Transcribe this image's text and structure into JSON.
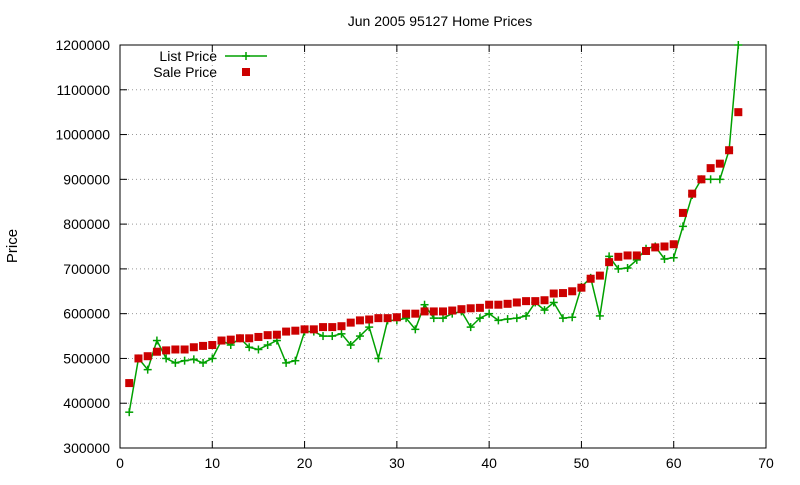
{
  "chart_data": {
    "type": "line",
    "title": "Jun 2005 95127 Home Prices",
    "xlabel": "",
    "ylabel": "Price",
    "xlim": [
      0,
      70
    ],
    "ylim": [
      300000,
      1200000
    ],
    "x_ticks": [
      "0",
      "10",
      "20",
      "30",
      "40",
      "50",
      "60",
      "70"
    ],
    "y_ticks": [
      "300000",
      "400000",
      "500000",
      "600000",
      "700000",
      "800000",
      "900000",
      "1000000",
      "1100000",
      "1200000"
    ],
    "grid": true,
    "legend_position": "top-left",
    "series": [
      {
        "name": "List Price",
        "style": "line+cross",
        "color": "#00a000",
        "x": [
          1,
          2,
          3,
          4,
          5,
          6,
          7,
          8,
          9,
          10,
          11,
          12,
          13,
          14,
          15,
          16,
          17,
          18,
          19,
          20,
          21,
          22,
          23,
          24,
          25,
          26,
          27,
          28,
          29,
          30,
          31,
          32,
          33,
          34,
          35,
          36,
          37,
          38,
          39,
          40,
          41,
          42,
          43,
          44,
          45,
          46,
          47,
          48,
          49,
          50,
          51,
          52,
          53,
          54,
          55,
          56,
          57,
          58,
          59,
          60,
          61,
          62,
          63,
          64,
          65,
          66,
          67
        ],
        "y": [
          380000,
          500000,
          475000,
          540000,
          500000,
          490000,
          495000,
          498000,
          490000,
          500000,
          540000,
          530000,
          545000,
          525000,
          520000,
          530000,
          540000,
          490000,
          495000,
          560000,
          560000,
          550000,
          550000,
          555000,
          530000,
          550000,
          570000,
          500000,
          585000,
          585000,
          590000,
          565000,
          620000,
          590000,
          590000,
          600000,
          605000,
          570000,
          590000,
          600000,
          585000,
          588000,
          590000,
          595000,
          625000,
          608000,
          625000,
          590000,
          592000,
          660000,
          680000,
          595000,
          728000,
          700000,
          702000,
          720000,
          745000,
          750000,
          722000,
          725000,
          795000,
          865000,
          900000,
          900000,
          900000,
          965000,
          1200000
        ]
      },
      {
        "name": "Sale Price",
        "style": "square",
        "color": "#cc0000",
        "x": [
          1,
          2,
          3,
          4,
          5,
          6,
          7,
          8,
          9,
          10,
          11,
          12,
          13,
          14,
          15,
          16,
          17,
          18,
          19,
          20,
          21,
          22,
          23,
          24,
          25,
          26,
          27,
          28,
          29,
          30,
          31,
          32,
          33,
          34,
          35,
          36,
          37,
          38,
          39,
          40,
          41,
          42,
          43,
          44,
          45,
          46,
          47,
          48,
          49,
          50,
          51,
          52,
          53,
          54,
          55,
          56,
          57,
          58,
          59,
          60,
          61,
          62,
          63,
          64,
          65,
          66,
          67
        ],
        "y": [
          445000,
          500000,
          505000,
          515000,
          518000,
          520000,
          520000,
          525000,
          528000,
          530000,
          540000,
          542000,
          545000,
          545000,
          548000,
          552000,
          553000,
          560000,
          562000,
          565000,
          565000,
          570000,
          570000,
          572000,
          580000,
          585000,
          587000,
          590000,
          590000,
          592000,
          600000,
          600000,
          605000,
          605000,
          605000,
          607000,
          610000,
          612000,
          613000,
          620000,
          620000,
          622000,
          625000,
          628000,
          628000,
          630000,
          645000,
          646000,
          650000,
          658000,
          678000,
          685000,
          715000,
          727000,
          730000,
          730000,
          740000,
          748000,
          750000,
          755000,
          825000,
          868000,
          900000,
          925000,
          935000,
          965000,
          1050000
        ]
      }
    ]
  }
}
